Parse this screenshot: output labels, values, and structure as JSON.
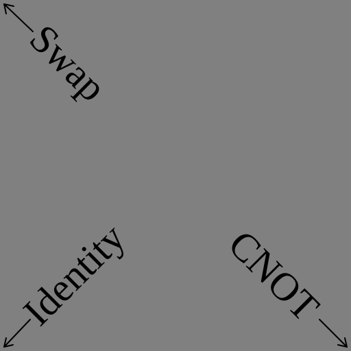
{
  "diagram": {
    "background": "#808080",
    "ink": "#000000",
    "labels": {
      "top_left": "Swap",
      "bottom_left": "Identity",
      "bottom_right": "CNOT"
    }
  }
}
